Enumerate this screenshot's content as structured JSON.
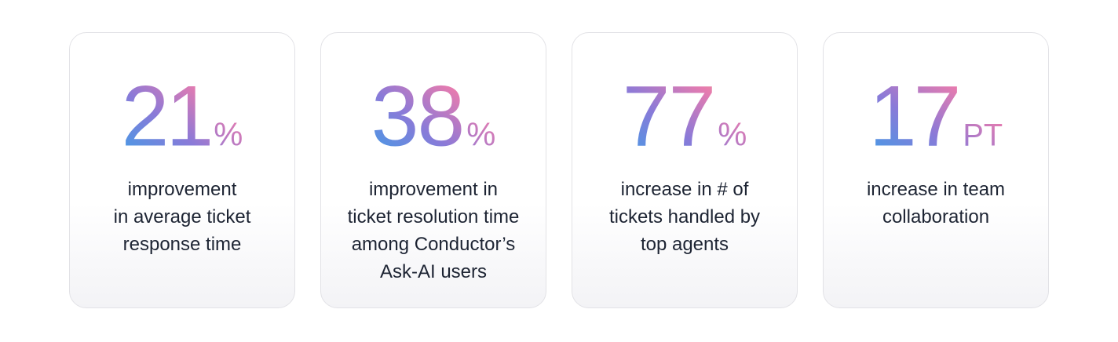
{
  "accent_gradient": [
    "#3aa0e8",
    "#8a7ad8",
    "#e57bb0",
    "#f2b77a"
  ],
  "text_color": "#1d2433",
  "stats": [
    {
      "number": "21",
      "unit": "%",
      "lines": [
        "improvement",
        "in average ticket",
        "response time"
      ]
    },
    {
      "number": "38",
      "unit": "%",
      "lines": [
        "improvement in",
        "ticket resolution time",
        "among Conductor’s",
        "Ask-AI users"
      ]
    },
    {
      "number": "77",
      "unit": "%",
      "lines": [
        "increase in # of",
        "tickets handled by",
        "top agents"
      ]
    },
    {
      "number": "17",
      "unit": "PT",
      "lines": [
        "increase in team",
        "collaboration"
      ]
    }
  ]
}
